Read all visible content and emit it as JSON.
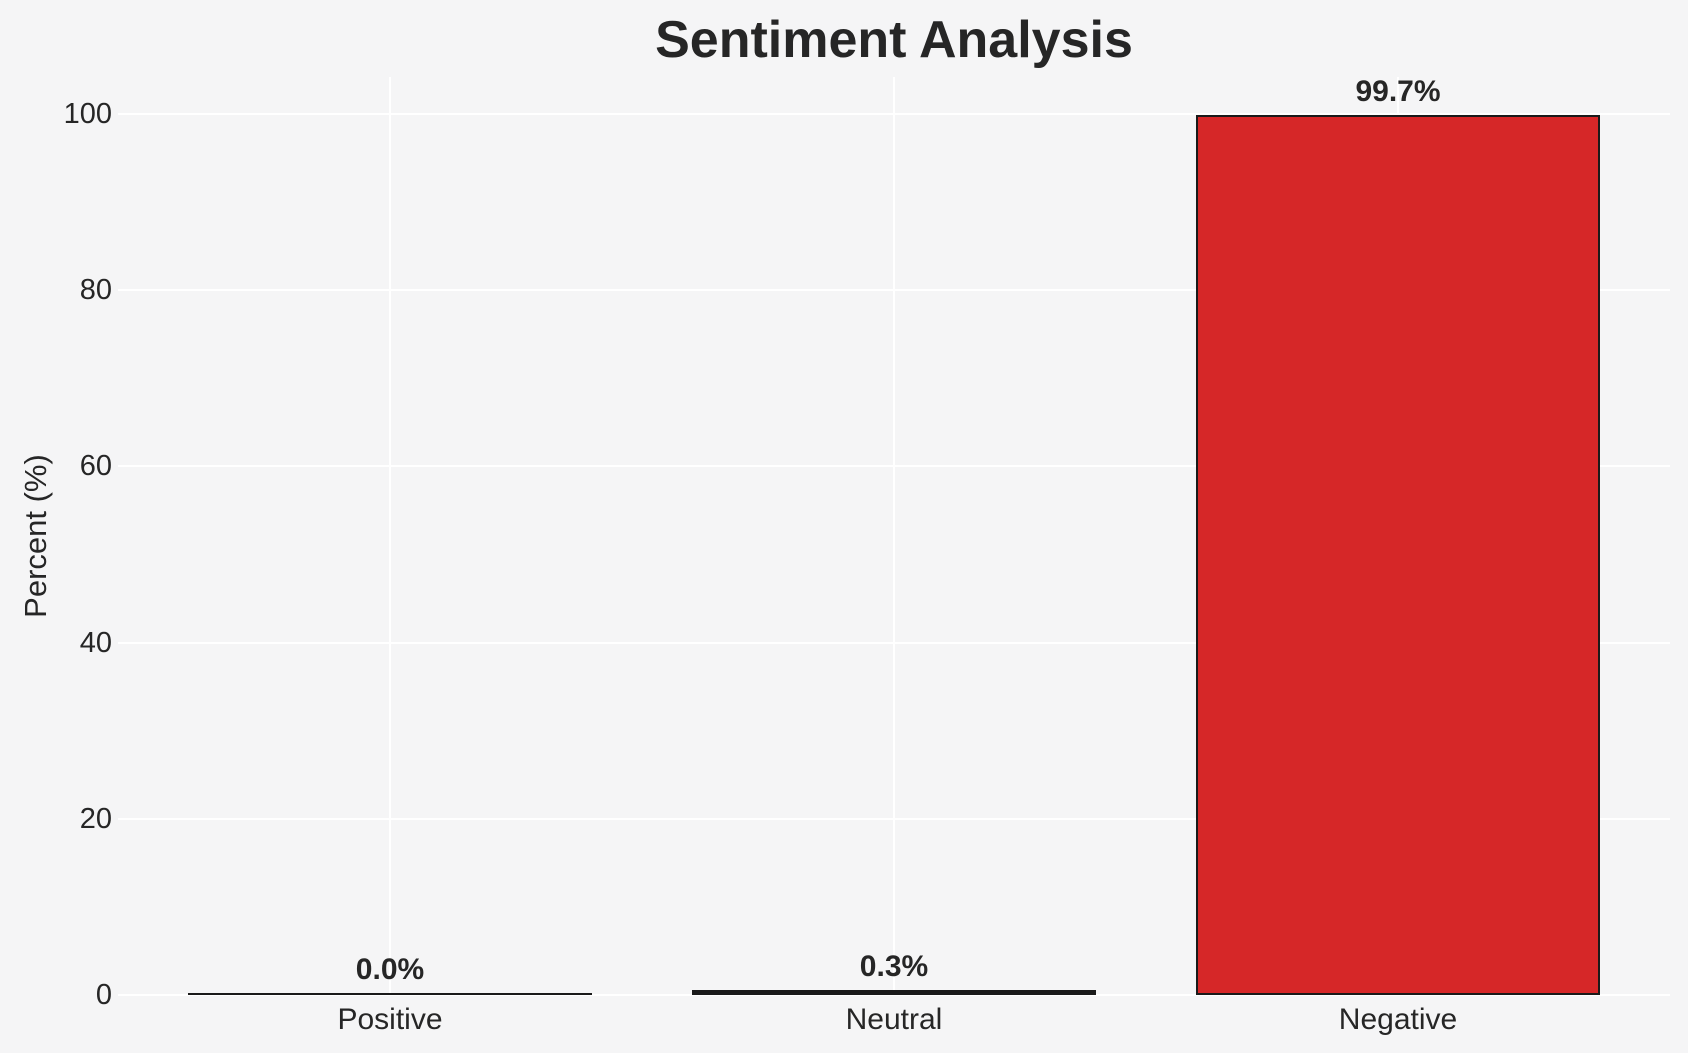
{
  "figure": {
    "background_color": "#f5f5f6"
  },
  "chart_data": {
    "type": "bar",
    "title": "Sentiment Analysis",
    "xlabel": "",
    "ylabel": "Percent (%)",
    "categories": [
      "Positive",
      "Neutral",
      "Negative"
    ],
    "values": [
      0.0,
      0.3,
      99.7
    ],
    "data_labels": [
      "0.0%",
      "0.3%",
      "99.7%"
    ],
    "yticks": [
      0,
      20,
      40,
      60,
      80,
      100
    ],
    "ylim": [
      0,
      104
    ],
    "legend": "none",
    "grid": {
      "horizontal": true,
      "vertical": true,
      "color": "#ffffff"
    },
    "colors": {
      "bar_fill_negative": "#d62728",
      "bar_edge": "#1a1a1a",
      "collapsed_bar_line": "#1a1a1a",
      "text": "#262626",
      "background": "#f5f5f6"
    }
  }
}
